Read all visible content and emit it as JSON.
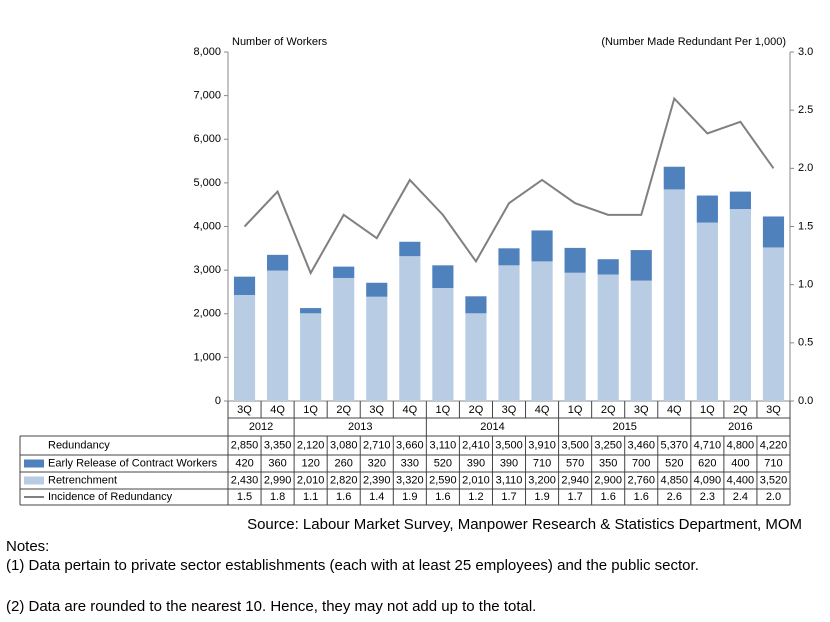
{
  "chart_data": {
    "type": "bar_line",
    "y_title": "Number of Workers",
    "y2_title": "(Number Made Redundant Per 1,000)",
    "categories": [
      "3Q",
      "4Q",
      "1Q",
      "2Q",
      "3Q",
      "4Q",
      "1Q",
      "2Q",
      "3Q",
      "4Q",
      "1Q",
      "2Q",
      "3Q",
      "4Q",
      "1Q",
      "2Q",
      "3Q"
    ],
    "category_groups": [
      {
        "label": "2012",
        "size": 2
      },
      {
        "label": "2013",
        "size": 4
      },
      {
        "label": "2014",
        "size": 4
      },
      {
        "label": "2015",
        "size": 4
      },
      {
        "label": "2016",
        "size": 3
      }
    ],
    "total": {
      "name": "Redundancy",
      "values": [
        2850,
        3350,
        2120,
        3080,
        2710,
        3660,
        3110,
        2410,
        3500,
        3910,
        3500,
        3250,
        3460,
        5370,
        4710,
        4800,
        4220
      ],
      "value_labels": [
        "2,850",
        "3,350",
        "2,120",
        "3,080",
        "2,710",
        "3,660",
        "3,110",
        "2,410",
        "3,500",
        "3,910",
        "3,500",
        "3,250",
        "3,460",
        "5,370",
        "4,710",
        "4,800",
        "4,220"
      ]
    },
    "series": [
      {
        "name": "Early Release of Contract Workers",
        "color": "#4f81bd",
        "kind": "stack-top",
        "values": [
          420,
          360,
          120,
          260,
          320,
          330,
          520,
          390,
          390,
          710,
          570,
          350,
          700,
          520,
          620,
          400,
          710
        ]
      },
      {
        "name": "Retrenchment",
        "color": "#b8cce4",
        "kind": "stack-base",
        "values": [
          2430,
          2990,
          2010,
          2820,
          2390,
          3320,
          2590,
          2010,
          3110,
          3200,
          2940,
          2900,
          2760,
          4850,
          4090,
          4400,
          3520
        ],
        "value_labels": [
          "2,430",
          "2,990",
          "2,010",
          "2,820",
          "2,390",
          "3,320",
          "2,590",
          "2,010",
          "3,110",
          "3,200",
          "2,940",
          "2,900",
          "2,760",
          "4,850",
          "4,090",
          "4,400",
          "3,520"
        ]
      },
      {
        "name": "Incidence of Redundancy",
        "color": "#808080",
        "kind": "line",
        "axis": "y2",
        "values": [
          1.5,
          1.8,
          1.1,
          1.6,
          1.4,
          1.9,
          1.6,
          1.2,
          1.7,
          1.9,
          1.7,
          1.6,
          1.6,
          2.6,
          2.3,
          2.4,
          2.0
        ],
        "value_labels": [
          "1.5",
          "1.8",
          "1.1",
          "1.6",
          "1.4",
          "1.9",
          "1.6",
          "1.2",
          "1.7",
          "1.9",
          "1.7",
          "1.6",
          "1.6",
          "2.6",
          "2.3",
          "2.4",
          "2.0"
        ]
      }
    ],
    "ylim": [
      0,
      8000
    ],
    "yticks": [
      0,
      {
        "value": 1000,
        "label": "1,000"
      },
      {
        "value": 2000,
        "label": "2,000"
      },
      {
        "value": 3000,
        "label": "3,000"
      },
      {
        "value": 4000,
        "label": "4,000"
      },
      {
        "value": 5000,
        "label": "5,000"
      },
      {
        "value": 6000,
        "label": "6,000"
      },
      {
        "value": 7000,
        "label": "7,000"
      },
      {
        "value": 8000,
        "label": "8,000"
      }
    ],
    "y2lim": [
      0,
      3
    ],
    "y2ticks": [
      {
        "value": 0,
        "label": "0.0"
      },
      0.5,
      {
        "value": 1,
        "label": "1.0"
      },
      1.5,
      {
        "value": 2,
        "label": "2.0"
      },
      2.5,
      {
        "value": 3,
        "label": "3.0"
      }
    ],
    "source": "Source: Labour Market Survey, Manpower Research & Statistics Department, MOM",
    "notes": {
      "heading": "Notes:",
      "items": [
        "(1)  Data pertain to private sector establishments (each with at least 25 employees) and the public sector.",
        "(2)  Data are rounded to the nearest 10.  Hence, they may not add up to the total."
      ]
    }
  }
}
